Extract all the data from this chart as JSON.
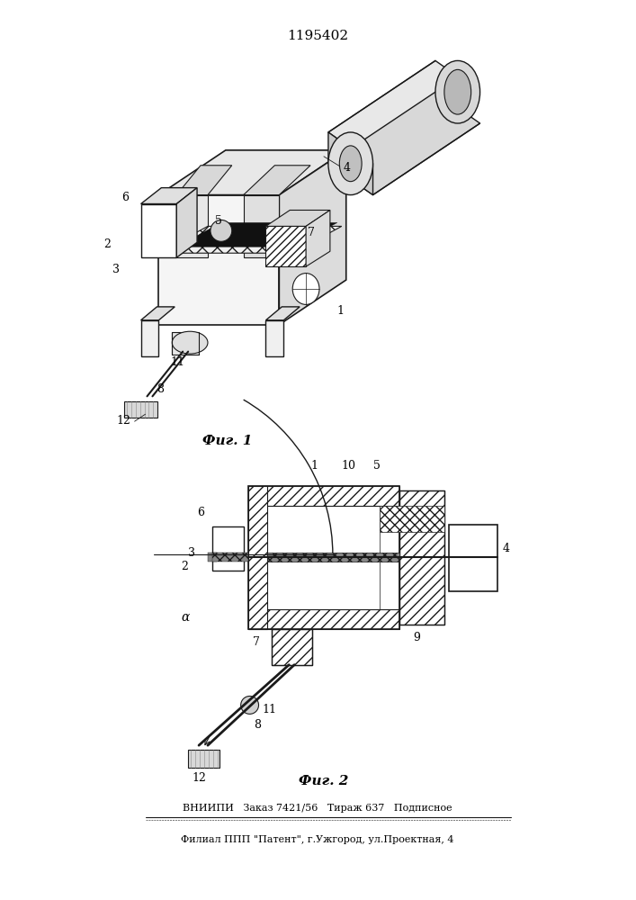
{
  "title": "1195402",
  "fig1_caption": "Фиг. 1",
  "fig2_caption": "Фиг. 2",
  "footer_line1": "ВНИИПИ   Заказ 7421/56   Тираж 637   Подписное",
  "footer_line2": "Филиал ППП \"Патент\", г.Ужгород, ул.Проектная, 4",
  "bg": "#ffffff",
  "lc": "#1a1a1a"
}
